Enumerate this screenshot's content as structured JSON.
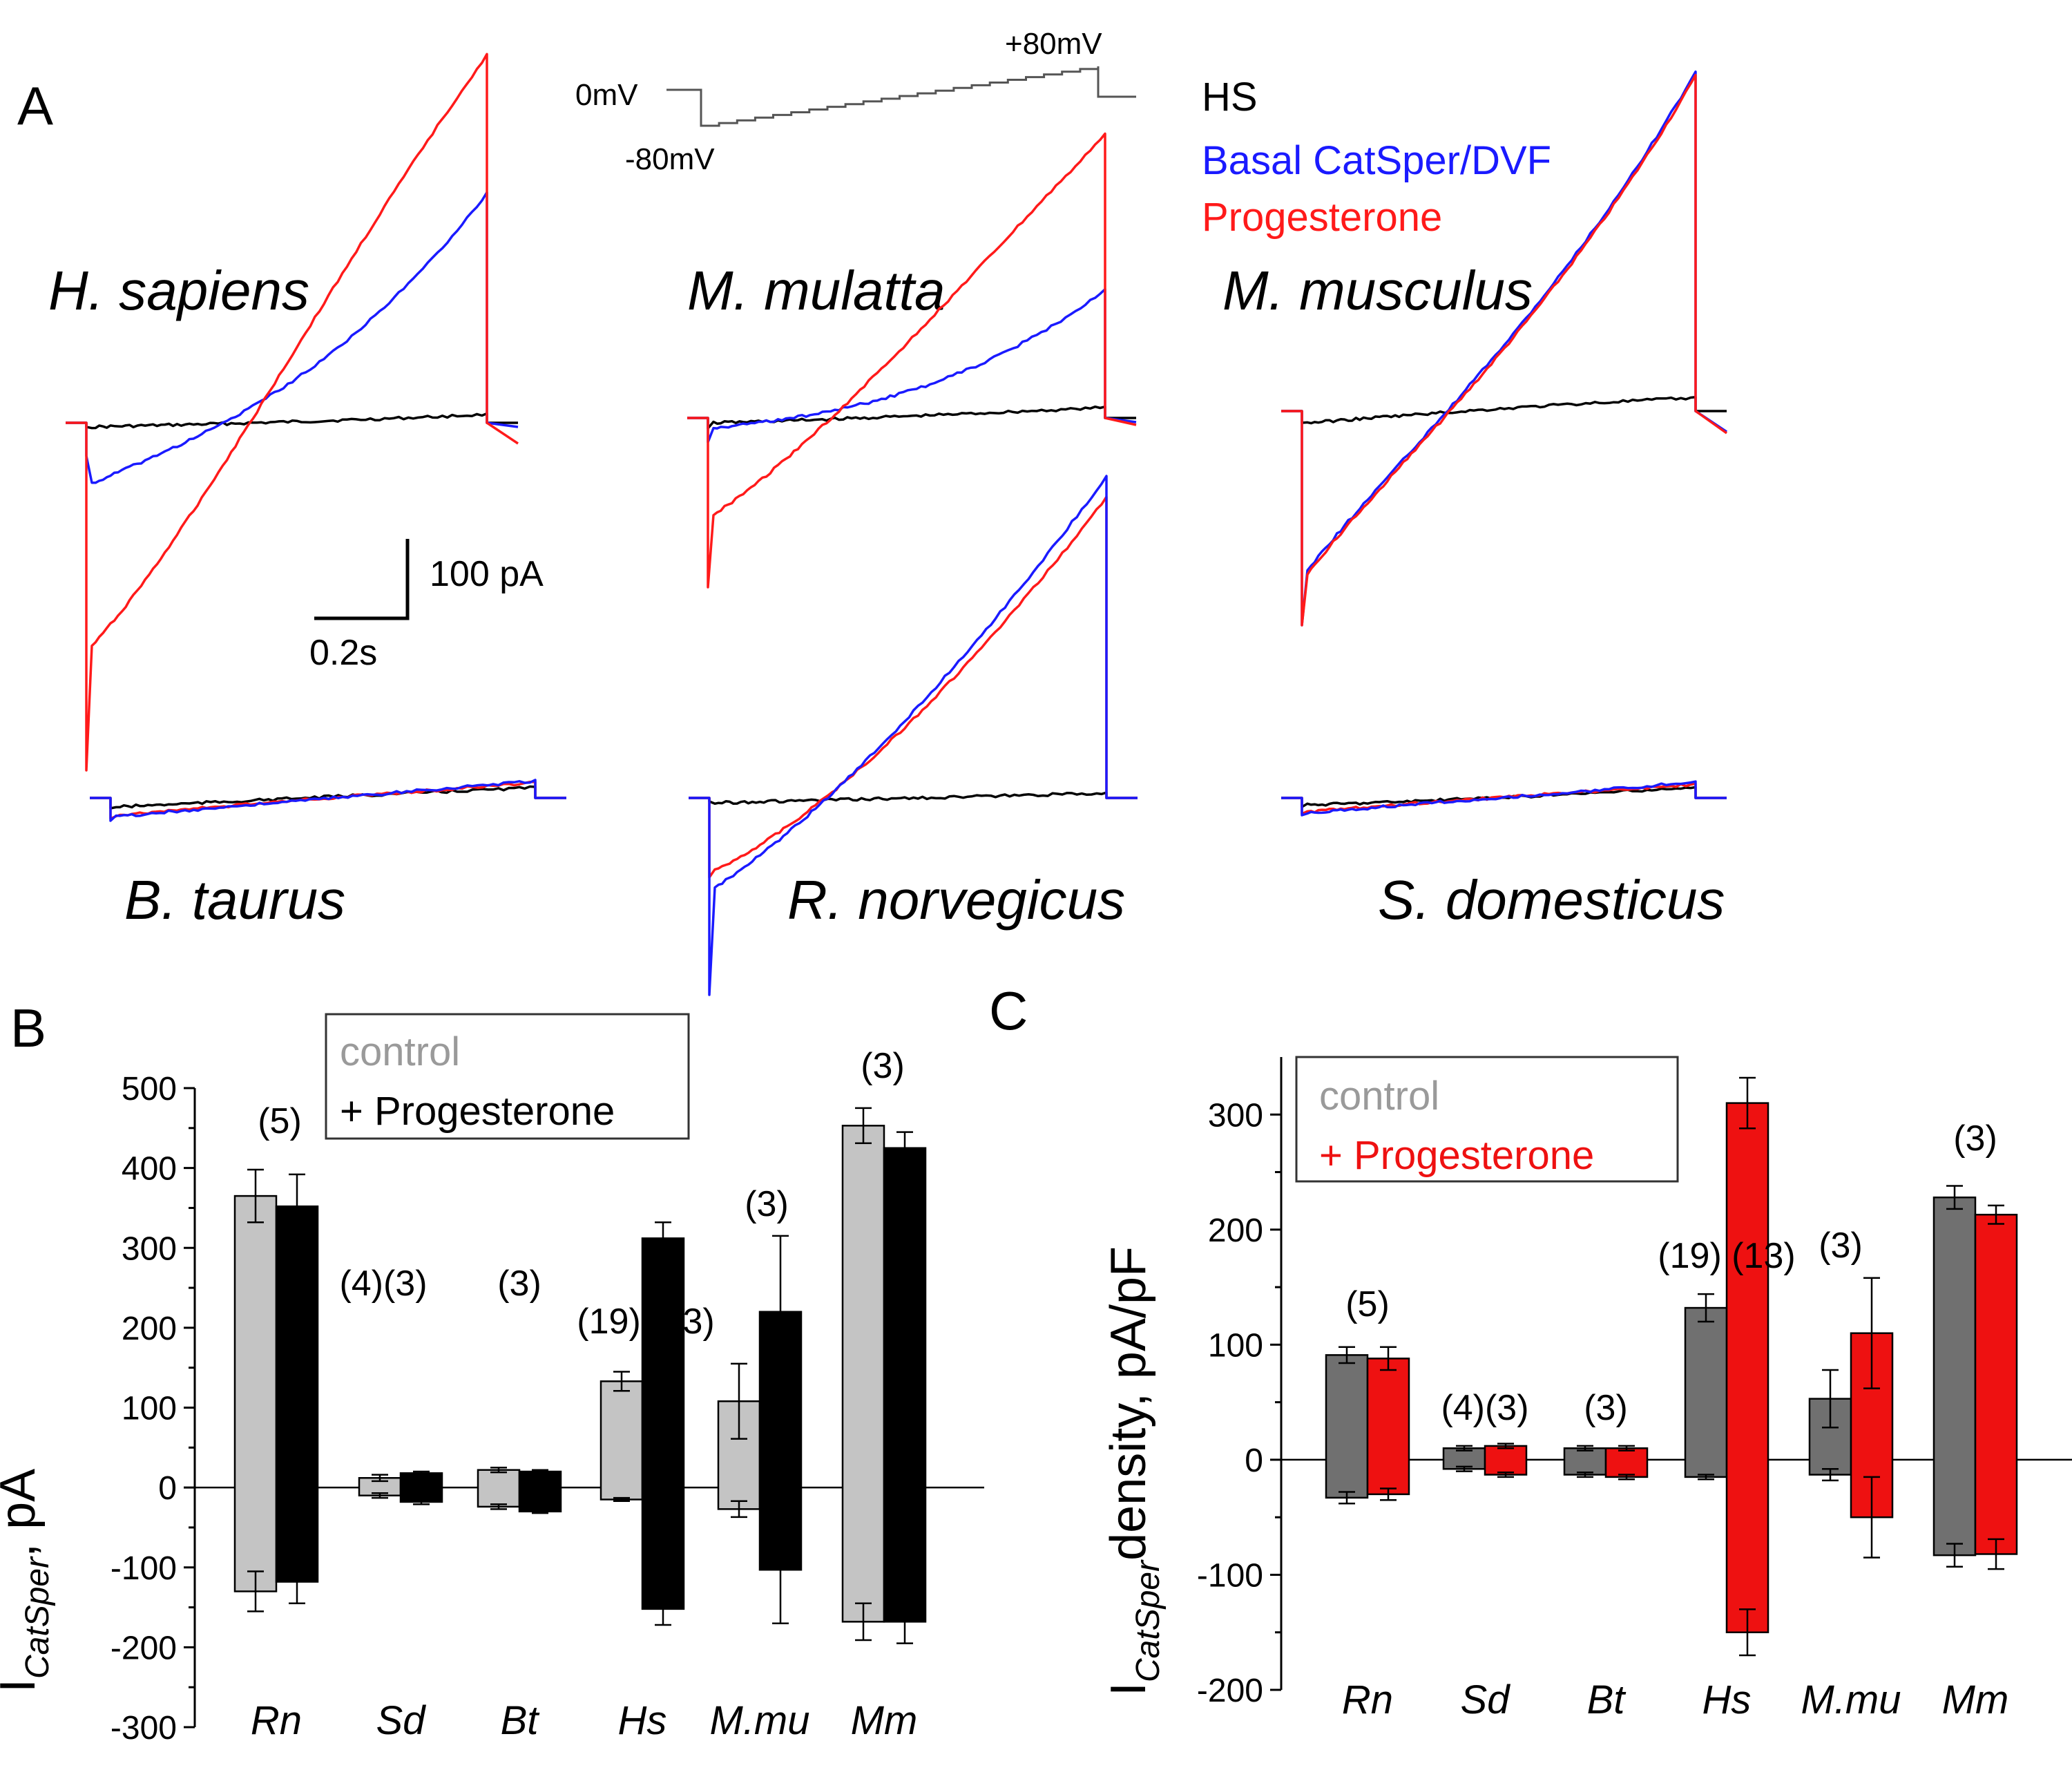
{
  "colors": {
    "hs": "#000000",
    "basal": "#1a1aff",
    "prog": "#ff1a1a",
    "ctrl_b": "#c4c4c4",
    "prog_b": "#000000",
    "ctrl_c": "#707070",
    "prog_c": "#ee1111",
    "legend_gray": "#9a9a9a"
  },
  "panel_a": {
    "letter": "A",
    "protocol": {
      "start": "0mV",
      "low": "-80mV",
      "high": "+80mV"
    },
    "legend": [
      "HS",
      "Basal CatSper/DVF",
      "Progesterone"
    ],
    "scale_bar": {
      "current": "100 pA",
      "time": "0.2s"
    },
    "species": [
      {
        "id": "hs",
        "label": "H. sapiens"
      },
      {
        "id": "mmul",
        "label": "M. mulatta"
      },
      {
        "id": "mmus",
        "label": "M. musculus"
      },
      {
        "id": "bt",
        "label": "B. taurus"
      },
      {
        "id": "rn",
        "label": "R. norvegicus"
      },
      {
        "id": "sd",
        "label": "S. domesticus"
      }
    ]
  },
  "chart_data": [
    {
      "panel": "B",
      "type": "bar",
      "title": "",
      "ylabel_main": "I",
      "ylabel_sub": "CatSper",
      "ylabel_rest": ", pA",
      "categories": [
        "Rn",
        "Sd",
        "Bt",
        "Hs",
        "M.mu",
        "Mm"
      ],
      "n_labels": [
        "(5)",
        "(4)(3)",
        "(3)",
        "(19) (13)",
        "(3)",
        "(3)"
      ],
      "ylim": [
        -300,
        500
      ],
      "yticks": [
        -300,
        -200,
        -100,
        0,
        100,
        200,
        300,
        400,
        500
      ],
      "legend": [
        "control",
        "+ Progesterone"
      ],
      "legend_position": "top-center",
      "series": [
        {
          "name": "control",
          "outward": [
            365,
            12,
            22,
            133,
            108,
            453
          ],
          "outward_err": [
            33,
            4,
            3,
            12,
            47,
            22
          ],
          "inward": [
            -130,
            -10,
            -24,
            -15,
            -27,
            -168
          ],
          "inward_err": [
            25,
            3,
            3,
            2,
            10,
            23
          ]
        },
        {
          "name": "+ Progesterone",
          "outward": [
            352,
            18,
            20,
            312,
            220,
            425
          ],
          "outward_err": [
            40,
            2,
            2,
            20,
            95,
            20
          ],
          "inward": [
            -118,
            -18,
            -30,
            -152,
            -103,
            -168
          ],
          "inward_err": [
            27,
            3,
            2,
            20,
            67,
            27
          ]
        }
      ]
    },
    {
      "panel": "C",
      "type": "bar",
      "title": "",
      "ylabel_main": "I",
      "ylabel_sub": "CatSper",
      "ylabel_rest": "density, pA/pF",
      "categories": [
        "Rn",
        "Sd",
        "Bt",
        "Hs",
        "M.mu",
        "Mm"
      ],
      "n_labels": [
        "(5)",
        "(4)(3)",
        "(3)",
        "(19) (13)",
        "(3)",
        "(3)"
      ],
      "ylim": [
        -200,
        350
      ],
      "yticks": [
        -200,
        -100,
        0,
        100,
        200,
        300
      ],
      "legend": [
        "control",
        "+ Progesterone"
      ],
      "legend_position": "top-left",
      "series": [
        {
          "name": "control",
          "outward": [
            91,
            10,
            10,
            132,
            53,
            228
          ],
          "outward_err": [
            7,
            2,
            2,
            12,
            25,
            10
          ],
          "inward": [
            -33,
            -8,
            -13,
            -15,
            -13,
            -83
          ],
          "inward_err": [
            5,
            2,
            2,
            2,
            5,
            10
          ]
        },
        {
          "name": "+ Progesterone",
          "outward": [
            88,
            12,
            10,
            310,
            110,
            213
          ],
          "outward_err": [
            10,
            2,
            2,
            22,
            48,
            8
          ],
          "inward": [
            -30,
            -13,
            -15,
            -150,
            -50,
            -82
          ],
          "inward_err": [
            5,
            2,
            2,
            20,
            35,
            13
          ]
        }
      ]
    }
  ]
}
